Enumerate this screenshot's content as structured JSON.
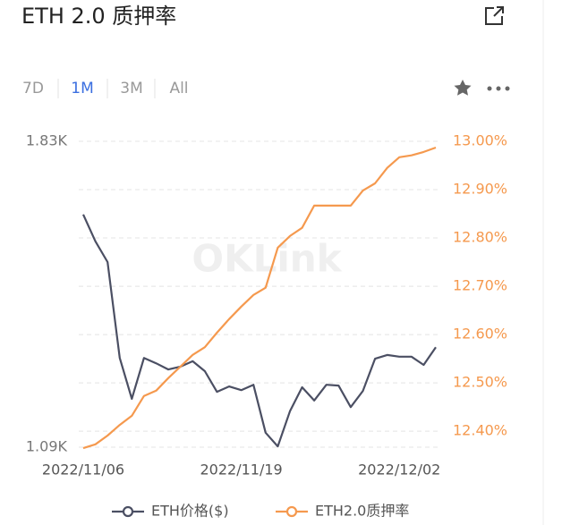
{
  "chart_data": {
    "type": "line",
    "title": "ETH 2.0 质押率",
    "ranges": [
      "7D",
      "1M",
      "3M",
      "All"
    ],
    "active_range": "1M",
    "watermark": "OKLink",
    "categories": [
      "2022/11/06",
      null,
      null,
      null,
      null,
      null,
      null,
      null,
      null,
      null,
      null,
      null,
      null,
      "2022/11/19",
      null,
      null,
      null,
      null,
      null,
      null,
      null,
      null,
      null,
      null,
      null,
      null,
      "2022/12/02",
      null,
      null,
      null
    ],
    "ylim": [
      1090,
      1830
    ],
    "yticks": [
      {
        "value": 1830,
        "label": "1.83K"
      },
      {
        "value": 1090,
        "label": "1.09K"
      }
    ],
    "y2lim": [
      12.367,
      13.0
    ],
    "y2ticks": [
      {
        "value": 13.0,
        "label": "13.00%"
      },
      {
        "value": 12.9,
        "label": "12.90%"
      },
      {
        "value": 12.8,
        "label": "12.80%"
      },
      {
        "value": 12.7,
        "label": "12.70%"
      },
      {
        "value": 12.6,
        "label": "12.60%"
      },
      {
        "value": 12.5,
        "label": "12.50%"
      },
      {
        "value": 12.4,
        "label": "12.40%"
      }
    ],
    "grid": true,
    "series": [
      {
        "name": "ETH价格($)",
        "color": "#4b4f63",
        "values": [
          1653,
          1588,
          1538,
          1306,
          1207,
          1306,
          1293,
          1278,
          1285,
          1298,
          1274,
          1224,
          1237,
          1228,
          1241,
          1125,
          1092,
          1177,
          1235,
          1203,
          1241,
          1239,
          1187,
          1226,
          1304,
          1313,
          1309,
          1309,
          1289,
          1332
        ]
      },
      {
        "name": "ETH2.0质押率",
        "color": "#f5994e",
        "axis": "y2",
        "values": [
          12.365,
          12.373,
          12.391,
          12.413,
          12.432,
          12.473,
          12.484,
          12.51,
          12.534,
          12.558,
          12.574,
          12.604,
          12.632,
          12.658,
          12.682,
          12.697,
          12.78,
          12.804,
          12.821,
          12.867,
          12.867,
          12.867,
          12.867,
          12.898,
          12.913,
          12.945,
          12.967,
          12.971,
          12.978,
          12.987
        ]
      }
    ]
  }
}
